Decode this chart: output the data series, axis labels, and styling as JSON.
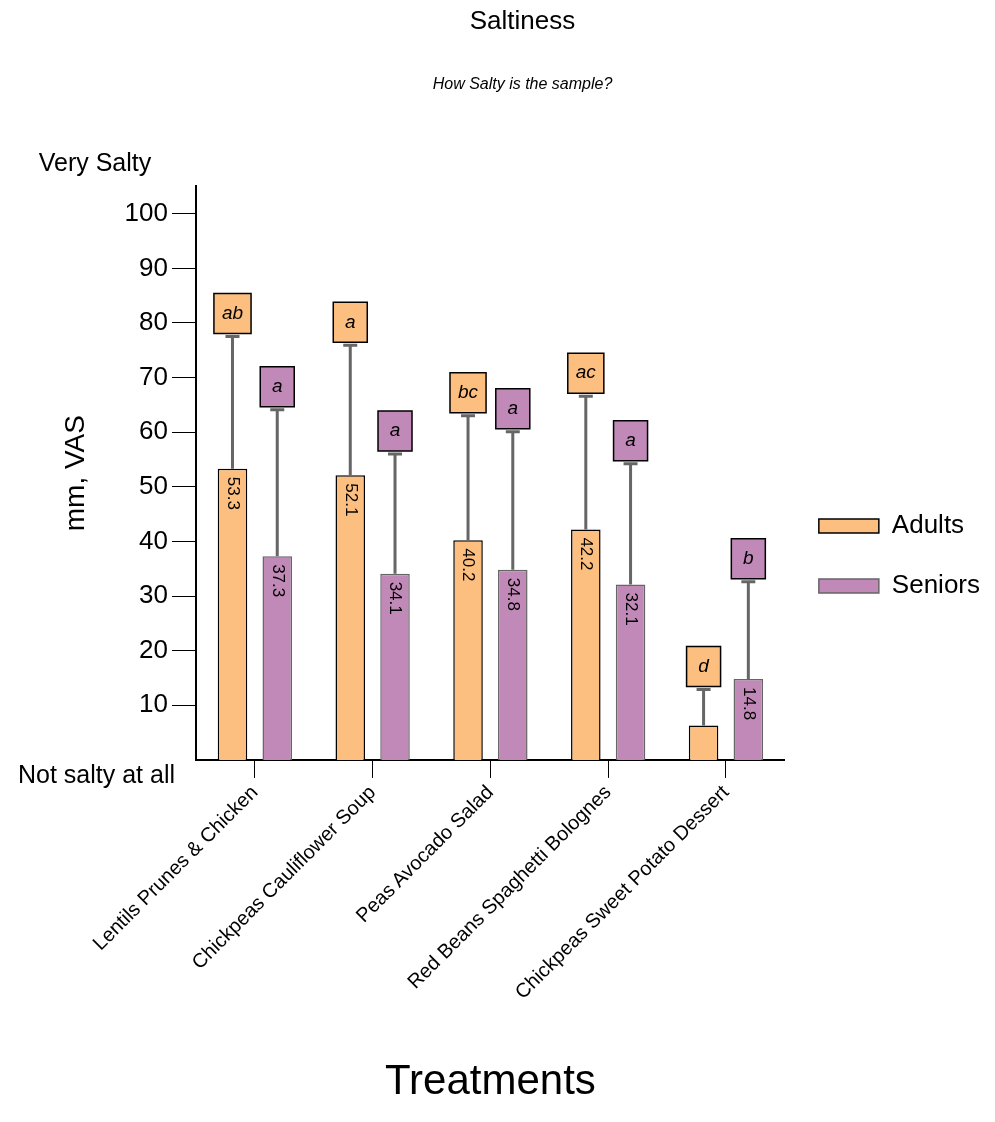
{
  "chart_data": {
    "type": "bar",
    "title": "Saltiness",
    "subtitle": "How Salty is the sample?",
    "xlabel": "Treatments",
    "ylabel": "mm, VAS",
    "categories": [
      "Lentils Prunes & Chicken",
      "Chickpeas Cauliflower Soup",
      "Peas Avocado Salad",
      "Red Beans Spaghetti Bolognes",
      "Chickpeas Sweet Potato Dessert"
    ],
    "series": [
      {
        "name": "Adults",
        "color": "#fdbf7f",
        "values": [
          53.3,
          52.1,
          40.2,
          42.2,
          6.3
        ],
        "value_labels": [
          "53.3",
          "52.1",
          "40.2",
          "42.2",
          null
        ],
        "errors": [
          [
            53.3,
            77.5
          ],
          [
            52.1,
            75.9
          ],
          [
            40.2,
            63.0
          ],
          [
            42.2,
            66.6
          ],
          [
            6.3,
            12.9
          ]
        ]
      },
      {
        "name": "Seniors",
        "color": "#c189b7",
        "values": [
          37.3,
          34.1,
          34.8,
          32.1,
          14.8
        ],
        "value_labels": [
          "37.3",
          "34.1",
          "34.8",
          "32.1",
          "14.8"
        ],
        "errors": [
          [
            37.3,
            64.1
          ],
          [
            34.1,
            56.0
          ],
          [
            34.8,
            60.1
          ],
          [
            32.1,
            54.2
          ],
          [
            14.8,
            32.6
          ]
        ]
      }
    ],
    "ylim": [
      0,
      105
    ],
    "yticks": [
      10,
      20,
      30,
      40,
      50,
      60,
      70,
      80,
      90,
      100
    ],
    "grid": false,
    "legend": "right",
    "annotations": [
      "Very Salty",
      "Not salty at all",
      "ab",
      "a",
      "a",
      "a",
      "bc",
      "a",
      "ac",
      "a",
      "d",
      "b"
    ]
  }
}
